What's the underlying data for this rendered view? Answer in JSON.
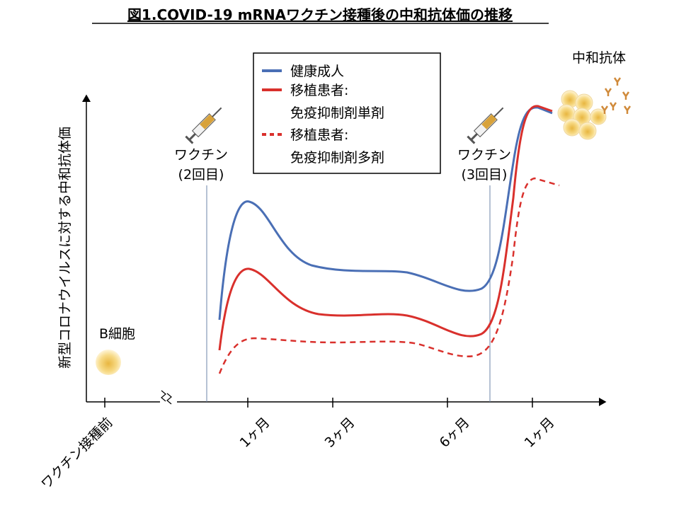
{
  "title": "図1.COVID-19 mRNAワクチン接種後の中和抗体価の推移",
  "y_axis_label": "新型コロナウイルスに対する中和抗体価",
  "legend": [
    {
      "lines": [
        "健康成人"
      ]
    },
    {
      "lines": [
        "移植患者:",
        "免疫抑制剤単剤"
      ]
    },
    {
      "lines": [
        "移植患者:",
        "免疫抑制剤多剤"
      ]
    }
  ],
  "vaccine_2": [
    "ワクチン",
    "(2回目)"
  ],
  "vaccine_3": [
    "ワクチン",
    "(3回目)"
  ],
  "b_cell": "B細胞",
  "antibody": "中和抗体",
  "x_ticks": [
    "ワクチン接種前",
    "1ヶ月",
    "3ヶ月",
    "6ヶ月",
    "1ヶ月"
  ]
}
